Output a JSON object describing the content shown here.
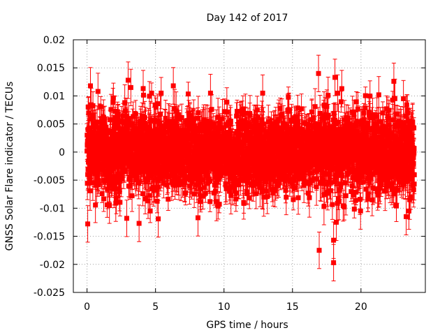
{
  "chart_data": {
    "type": "scatter",
    "title": "Day 142 of 2017",
    "xlabel": "GPS time / hours",
    "ylabel": "GNSS Solar Flare indicator / TECUs",
    "xlim": [
      -1,
      24.7
    ],
    "ylim": [
      -0.025,
      0.02
    ],
    "x_ticks": [
      0,
      5,
      10,
      15,
      20
    ],
    "x_tick_labels": [
      "0",
      "5",
      "10",
      "15",
      "20"
    ],
    "y_ticks": [
      -0.025,
      -0.02,
      -0.015,
      -0.01,
      -0.005,
      0,
      0.005,
      0.01,
      0.015,
      0.02
    ],
    "y_tick_labels": [
      "-0.025",
      "-0.02",
      "-0.015",
      "-0.01",
      "-0.005",
      "0",
      "0.005",
      "0.01",
      "0.015",
      "0.02"
    ],
    "grid": true,
    "series": [
      {
        "name": "solar flare indicator",
        "color": "#ff0000",
        "marker": "square",
        "error_bars": true,
        "x_range": [
          0,
          23.9
        ],
        "sample_interval_hours": 0.0083,
        "typical_spread": 0.0035,
        "typical_error": 0.0025,
        "notable_points": [
          {
            "x": 0.05,
            "y": -0.0128
          },
          {
            "x": 0.25,
            "y": 0.0118
          },
          {
            "x": 0.8,
            "y": 0.0108
          },
          {
            "x": 2.1,
            "y": -0.0091
          },
          {
            "x": 2.9,
            "y": -0.0118
          },
          {
            "x": 3.0,
            "y": 0.0128
          },
          {
            "x": 3.2,
            "y": 0.0115
          },
          {
            "x": 3.8,
            "y": -0.0127
          },
          {
            "x": 4.1,
            "y": 0.0113
          },
          {
            "x": 5.2,
            "y": -0.0119
          },
          {
            "x": 6.3,
            "y": 0.0118
          },
          {
            "x": 8.1,
            "y": -0.0117
          },
          {
            "x": 16.9,
            "y": 0.014
          },
          {
            "x": 16.95,
            "y": -0.0175
          },
          {
            "x": 17.3,
            "y": -0.0097
          },
          {
            "x": 17.6,
            "y": 0.0101
          },
          {
            "x": 18.0,
            "y": -0.0197
          },
          {
            "x": 18.0,
            "y": -0.0157
          },
          {
            "x": 18.1,
            "y": 0.0133
          },
          {
            "x": 18.2,
            "y": -0.0125
          },
          {
            "x": 18.3,
            "y": 0.0105
          },
          {
            "x": 18.4,
            "y": -0.0088
          },
          {
            "x": 18.6,
            "y": 0.0113
          },
          {
            "x": 21.3,
            "y": 0.0102
          },
          {
            "x": 22.4,
            "y": 0.0126
          },
          {
            "x": 23.1,
            "y": 0.0095
          },
          {
            "x": 23.3,
            "y": -0.0115
          },
          {
            "x": 23.5,
            "y": -0.0105
          }
        ]
      }
    ]
  }
}
